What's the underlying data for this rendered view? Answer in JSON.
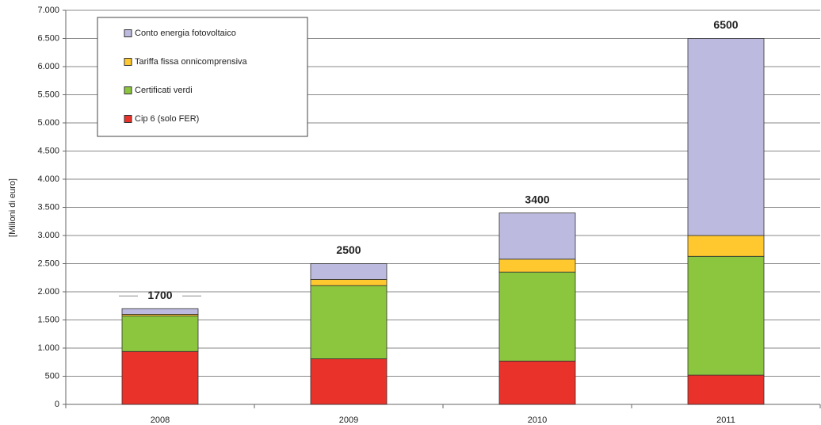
{
  "chart_data": {
    "type": "stacked-bar",
    "ylabel": "[Milioni di euro]",
    "categories": [
      "2008",
      "2009",
      "2010",
      "2011"
    ],
    "series": [
      {
        "name": "Cip 6 (solo FER)",
        "color": "#e8322a",
        "values": [
          940,
          810,
          770,
          520
        ]
      },
      {
        "name": "Certificati verdi",
        "color": "#8cc63f",
        "values": [
          630,
          1300,
          1580,
          2110
        ]
      },
      {
        "name": "Tariffa fissa onnicomprensiva",
        "color": "#ffc82e",
        "values": [
          30,
          110,
          230,
          370
        ]
      },
      {
        "name": "Conto energia fotovoltaico",
        "color": "#bcbbdf",
        "values": [
          100,
          280,
          820,
          3500
        ]
      }
    ],
    "totals": [
      1700,
      2500,
      3400,
      6500
    ],
    "ylim": [
      0,
      7000
    ],
    "yticks": [
      0,
      500,
      {
        "value": 1000,
        "label": "1.000"
      },
      {
        "value": 1500,
        "label": "1.500"
      },
      {
        "value": 2000,
        "label": "2.000"
      },
      {
        "value": 2500,
        "label": "2.500"
      },
      {
        "value": 3000,
        "label": "3.000"
      },
      {
        "value": 3500,
        "label": "3.500"
      },
      {
        "value": 4000,
        "label": "4.000"
      },
      {
        "value": 4500,
        "label": "4.500"
      },
      {
        "value": 5000,
        "label": "5.000"
      },
      {
        "value": 5500,
        "label": "5.500"
      },
      {
        "value": 6000,
        "label": "6.000"
      },
      {
        "value": 6500,
        "label": "6.500"
      },
      {
        "value": 7000,
        "label": "7.000"
      }
    ],
    "grid": true
  }
}
